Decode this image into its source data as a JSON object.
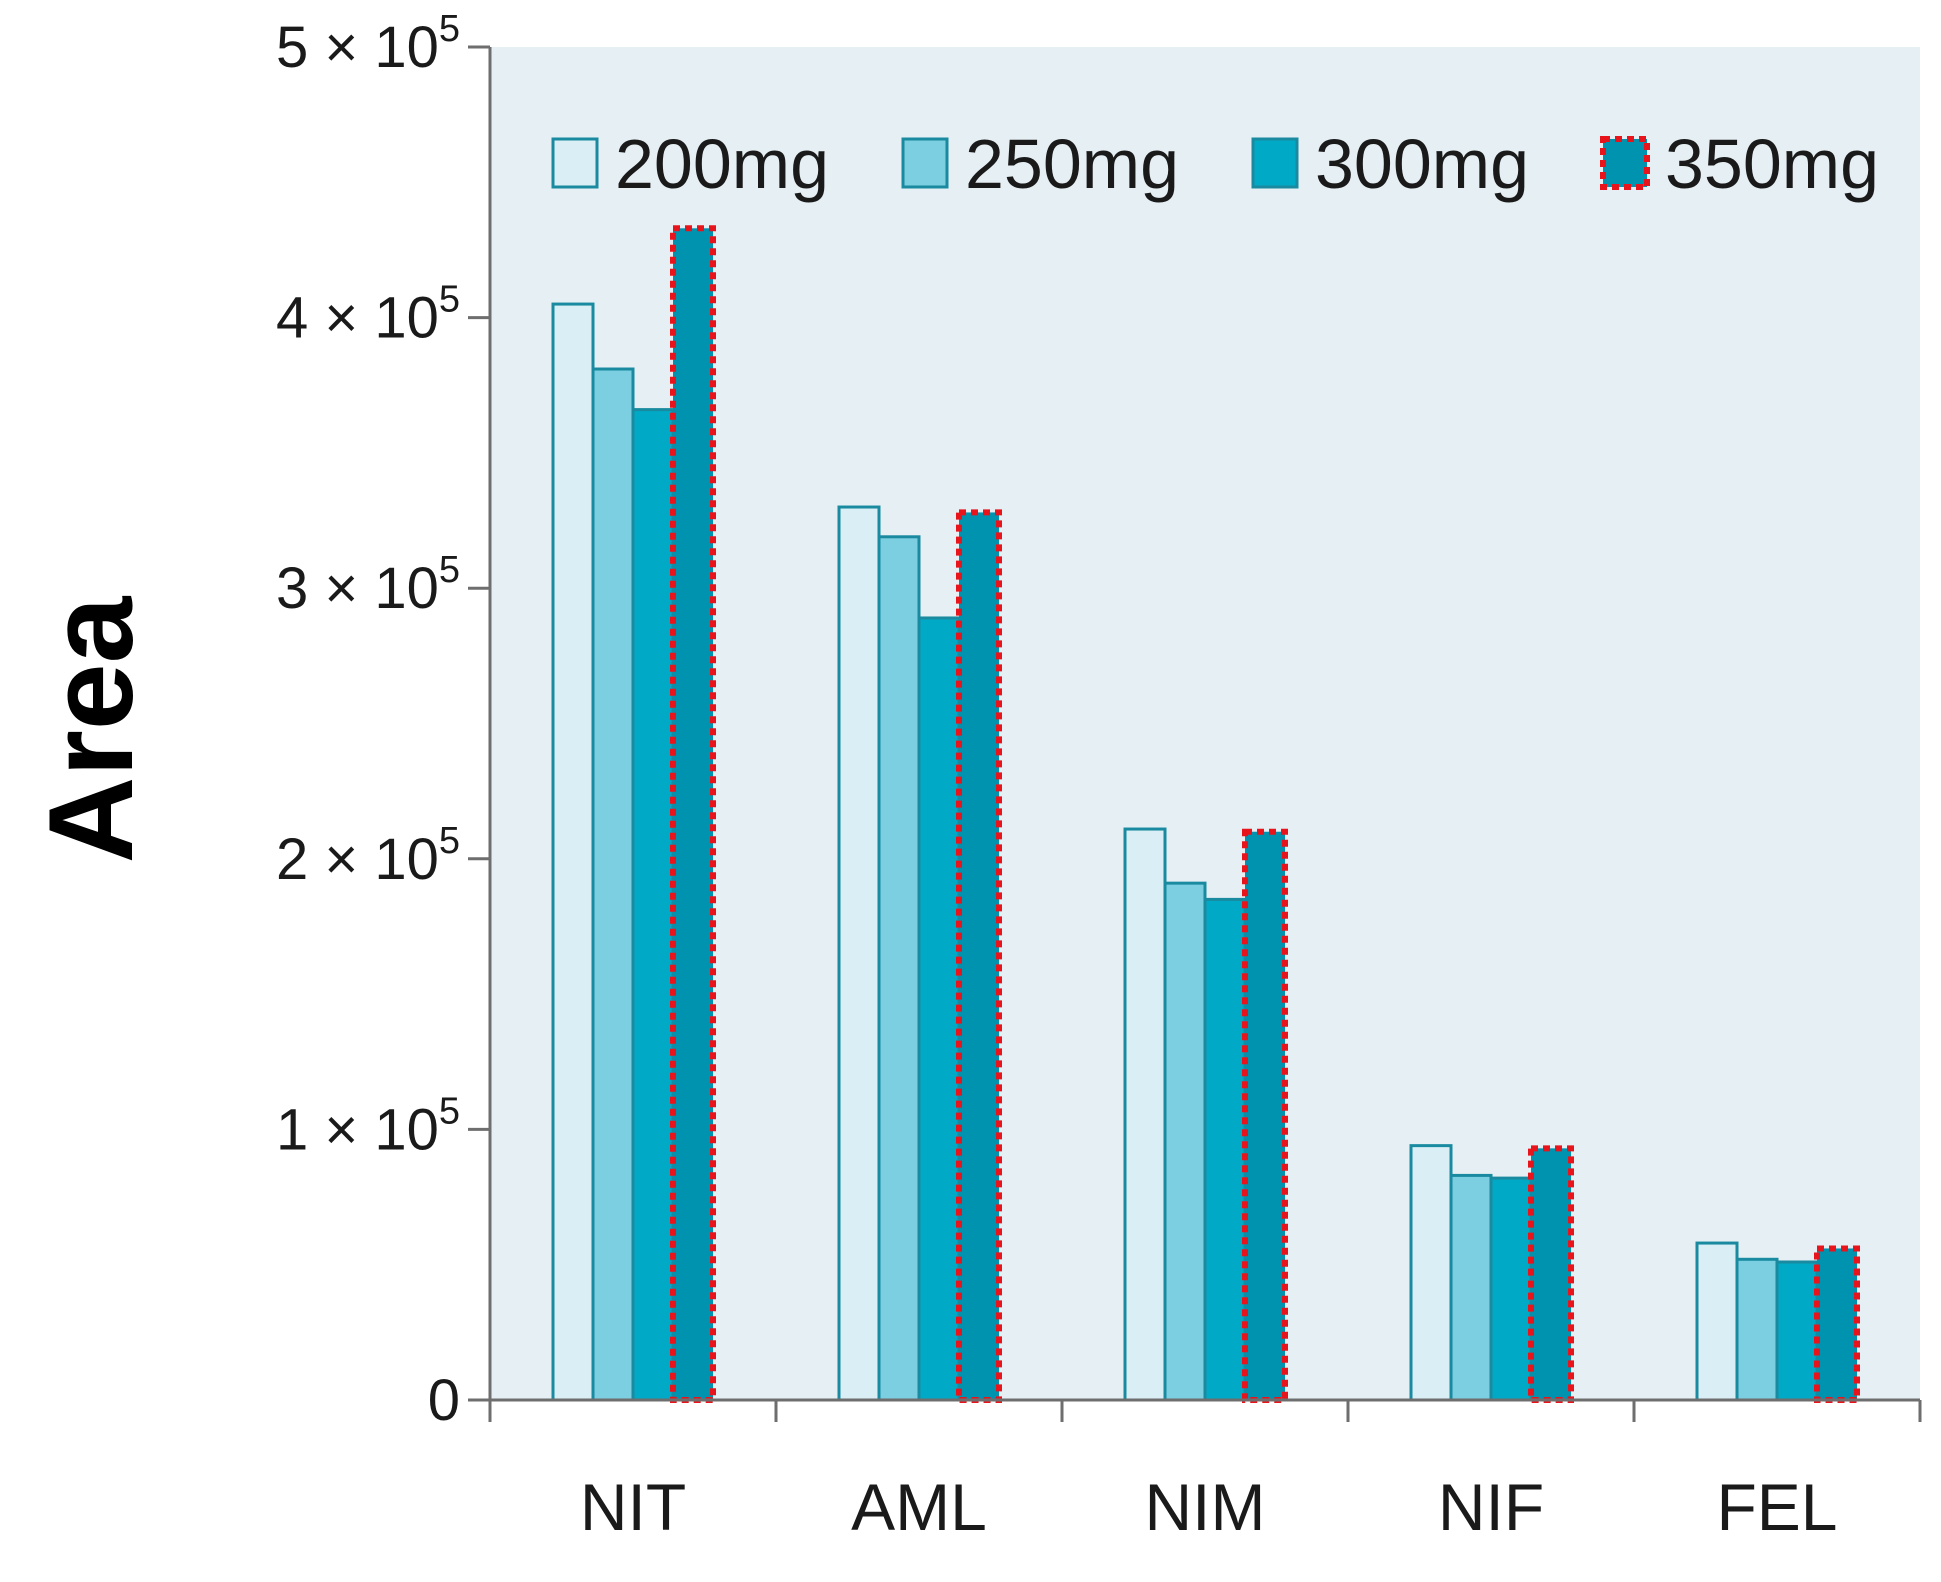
{
  "chart_data": {
    "type": "bar",
    "title": "",
    "xlabel": "",
    "ylabel": "Area",
    "ylim": [
      0,
      500000
    ],
    "yticks": [
      {
        "value": 0,
        "label": "0",
        "mant": "",
        "exp": ""
      },
      {
        "value": 100000,
        "label": "1 × 10^5",
        "mant": "1 × 10",
        "exp": "5"
      },
      {
        "value": 200000,
        "label": "2 × 10^5",
        "mant": "2 × 10",
        "exp": "5"
      },
      {
        "value": 300000,
        "label": "3 × 10^5",
        "mant": "3 × 10",
        "exp": "5"
      },
      {
        "value": 400000,
        "label": "4 × 10^5",
        "mant": "4 × 10",
        "exp": "5"
      },
      {
        "value": 500000,
        "label": "5 × 10^5",
        "mant": "5 × 10",
        "exp": "5"
      }
    ],
    "categories": [
      "NIT",
      "AML",
      "NIM",
      "NIF",
      "FEL"
    ],
    "legend_position": "top",
    "grid": false,
    "series": [
      {
        "name": "200mg",
        "values": [
          405000,
          330000,
          211000,
          94000,
          58000
        ]
      },
      {
        "name": "250mg",
        "values": [
          381000,
          319000,
          191000,
          83000,
          52000
        ]
      },
      {
        "name": "300mg",
        "values": [
          366000,
          289000,
          185000,
          82000,
          51000
        ]
      },
      {
        "name": "350mg",
        "values": [
          433000,
          328000,
          210000,
          93000,
          56000
        ]
      }
    ]
  },
  "colors": {
    "plot_background": "#e6f0f4",
    "series_fill": [
      "#d9eff5",
      "#7ccfe0",
      "#00a9c5",
      "#0093b0"
    ],
    "series_stroke": "#1a8aa0",
    "highlight_border": "#e8141c",
    "axis": "#6e6e6e"
  }
}
